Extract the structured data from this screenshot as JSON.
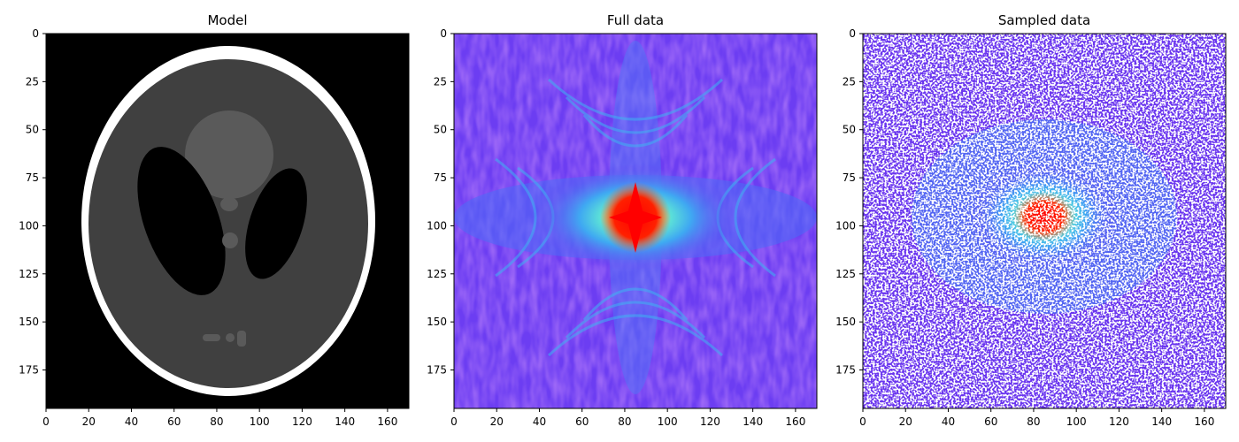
{
  "chart_data": [
    {
      "type": "heatmap",
      "title": "Model",
      "xlabel": "",
      "ylabel": "",
      "xlim": [
        0,
        170
      ],
      "ylim": [
        195,
        0
      ],
      "xticks": [
        0,
        20,
        40,
        60,
        80,
        100,
        120,
        140,
        160
      ],
      "yticks": [
        0,
        25,
        50,
        75,
        100,
        125,
        150,
        175
      ],
      "colormap": "gray",
      "content": "shepp-logan-phantom",
      "colors": {
        "background": "#000000",
        "ring": "#ffffff",
        "body": "#404040",
        "blob": "#5a5a5a",
        "holes": "#000000"
      }
    },
    {
      "type": "heatmap",
      "title": "Full data",
      "xlabel": "",
      "ylabel": "",
      "xlim": [
        0,
        170
      ],
      "ylim": [
        195,
        0
      ],
      "xticks": [
        0,
        20,
        40,
        60,
        80,
        100,
        120,
        140,
        160
      ],
      "yticks": [
        0,
        25,
        50,
        75,
        100,
        125,
        150,
        175
      ],
      "colormap": "rainbow",
      "content": "log-magnitude-fourier-spectrum",
      "center": [
        85,
        97
      ]
    },
    {
      "type": "heatmap",
      "title": "Sampled data",
      "xlabel": "",
      "ylabel": "",
      "xlim": [
        0,
        170
      ],
      "ylim": [
        195,
        0
      ],
      "xticks": [
        0,
        20,
        40,
        60,
        80,
        100,
        120,
        140,
        160
      ],
      "yticks": [
        0,
        25,
        50,
        75,
        100,
        125,
        150,
        175
      ],
      "colormap": "rainbow",
      "content": "randomly-subsampled-fourier-spectrum",
      "center": [
        85,
        97
      ],
      "missing_color": "#ffffff"
    }
  ]
}
